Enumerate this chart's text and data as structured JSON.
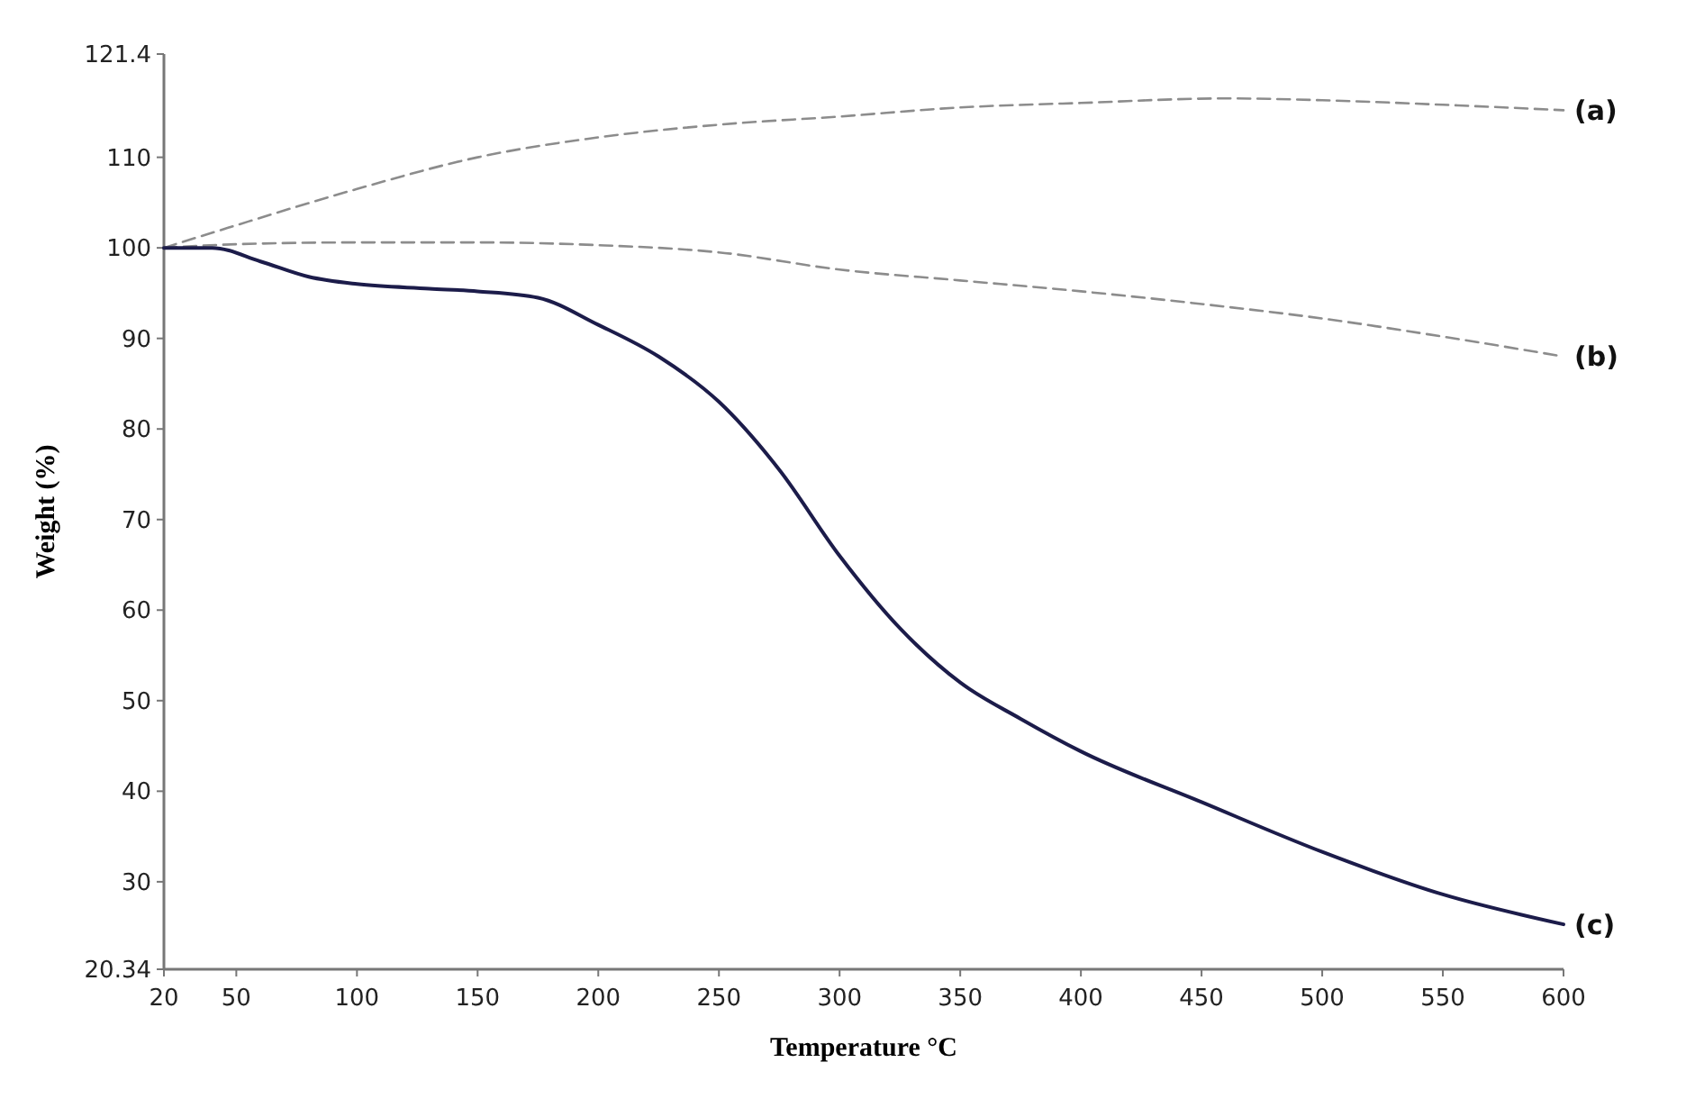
{
  "chart_data": {
    "type": "line",
    "xlabel": "Temperature °C",
    "ylabel": "Weight (%)",
    "xlim": [
      20,
      600
    ],
    "xticks": [
      20,
      50,
      100,
      150,
      200,
      250,
      300,
      350,
      400,
      450,
      500,
      550,
      600
    ],
    "ylim": [
      20.34,
      121.4
    ],
    "yticks": [
      20.34,
      30,
      40,
      50,
      60,
      70,
      80,
      90,
      100,
      110,
      121.4
    ],
    "grid": false,
    "marker": "none",
    "series": [
      {
        "name": "(a)",
        "color": "#8c8c8c",
        "line_style": "dashed",
        "x": [
          20,
          50,
          100,
          150,
          200,
          250,
          300,
          350,
          400,
          460,
          500,
          550,
          600
        ],
        "values": [
          100,
          102.5,
          106.5,
          110,
          112.2,
          113.6,
          114.5,
          115.5,
          116,
          116.5,
          116.3,
          115.8,
          115.2
        ]
      },
      {
        "name": "(b)",
        "color": "#8c8c8c",
        "line_style": "dashed",
        "x": [
          20,
          50,
          100,
          150,
          200,
          250,
          300,
          350,
          400,
          450,
          500,
          550,
          600
        ],
        "values": [
          100,
          100.4,
          100.6,
          100.6,
          100.3,
          99.5,
          97.6,
          96.4,
          95.2,
          93.8,
          92.2,
          90.2,
          88
        ]
      },
      {
        "name": "(c)",
        "color": "#1c1c4a",
        "line_style": "solid",
        "x": [
          20,
          40,
          60,
          80,
          100,
          130,
          150,
          175,
          200,
          225,
          250,
          275,
          300,
          325,
          350,
          375,
          400,
          450,
          500,
          550,
          600
        ],
        "values": [
          100,
          100,
          98.5,
          96.8,
          96,
          95.5,
          95.2,
          94.5,
          91.5,
          88,
          83,
          75.5,
          66,
          58,
          52,
          48,
          44.4,
          38.8,
          33.3,
          28.6,
          25.3
        ]
      }
    ]
  }
}
